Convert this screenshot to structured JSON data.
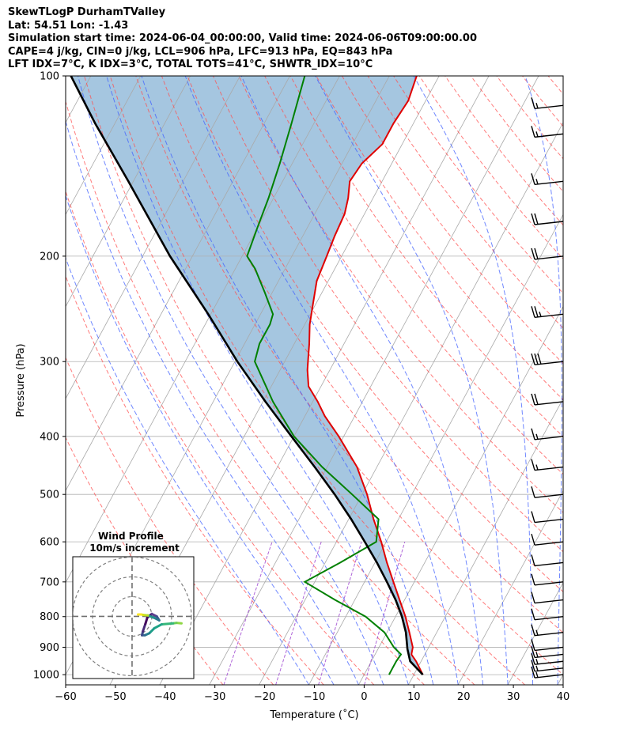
{
  "header": {
    "line1": "SkewTLogP DurhamTValley",
    "line2": "Lat: 54.51   Lon: -1.43",
    "line3": "Simulation start time: 2024-06-04_00:00:00, Valid time: 2024-06-06T09:00:00.00",
    "line4": "CAPE=4 j/kg, CIN=0 j/kg, LCL=906 hPa, LFC=913 hPa, EQ=843 hPa",
    "line5": "LFT IDX=7°C, K IDX=3°C, TOTAL TOTS=41°C, SHWTR_IDX=10°C"
  },
  "colors": {
    "temperature": "#e00000",
    "dewpoint": "#008000",
    "parcel": "#000000",
    "cape_fill": "#8fb8d8",
    "isotherm": "#a9a9a9",
    "dry_adiabat": "#ff5050",
    "moist_adiabat": "#4060ff",
    "mixing_ratio": "#9b40d0",
    "wind_barb": "#000000"
  },
  "chart_data": {
    "type": "line",
    "subtype": "skew-t log-p",
    "xlabel": "Temperature (˚C)",
    "ylabel": "Pressure (hPa)",
    "xlim": [
      -60,
      40
    ],
    "ylim": [
      1040,
      100
    ],
    "y_scale": "log",
    "x_ticks": [
      "−60",
      "−50",
      "−40",
      "−30",
      "−20",
      "−10",
      "0",
      "10",
      "20",
      "30",
      "40"
    ],
    "x_tick_values": [
      -60,
      -50,
      -40,
      -30,
      -20,
      -10,
      0,
      10,
      20,
      30,
      40
    ],
    "y_ticks": [
      "1000",
      "900",
      "800",
      "700",
      "600",
      "500",
      "400",
      "300",
      "200",
      "100"
    ],
    "y_tick_values": [
      1000,
      900,
      800,
      700,
      600,
      500,
      400,
      300,
      200,
      100
    ],
    "grid": true,
    "series": [
      {
        "key": "temperature",
        "pressure": [
          1000,
          950,
          925,
          900,
          850,
          800,
          750,
          700,
          650,
          600,
          550,
          500,
          450,
          400,
          370,
          350,
          330,
          310,
          300,
          280,
          260,
          240,
          220,
          200,
          185,
          170,
          160,
          150,
          140,
          130,
          120,
          110,
          100
        ],
        "values": [
          11.8,
          9.0,
          7.3,
          6.8,
          4.5,
          2.0,
          -1.0,
          -4.2,
          -7.6,
          -11.0,
          -15.0,
          -19.0,
          -24.0,
          -31.0,
          -36.0,
          -39.0,
          -42.5,
          -44.5,
          -45.3,
          -47.0,
          -49.0,
          -50.6,
          -52.3,
          -53.0,
          -53.6,
          -54.0,
          -55.0,
          -56.5,
          -56.0,
          -54.0,
          -54.0,
          -53.5,
          -54.5
        ]
      },
      {
        "key": "dewpoint",
        "pressure": [
          1000,
          975,
          950,
          925,
          900,
          850,
          800,
          750,
          700,
          650,
          600,
          550,
          500,
          450,
          400,
          350,
          300,
          280,
          260,
          250,
          230,
          210,
          200,
          180,
          160,
          140,
          120,
          100
        ],
        "values": [
          5.0,
          5.0,
          5.0,
          5.2,
          3.0,
          -0.5,
          -6.0,
          -14.0,
          -22.0,
          -17.0,
          -12.0,
          -14.0,
          -22.0,
          -31.0,
          -40.0,
          -48.0,
          -56.0,
          -57.0,
          -57.0,
          -57.5,
          -61.5,
          -66.0,
          -69.0,
          -70.0,
          -71.0,
          -72.5,
          -74.5,
          -77.0
        ]
      },
      {
        "key": "parcel",
        "pressure": [
          1000,
          950,
          906,
          850,
          800,
          750,
          700,
          650,
          600,
          550,
          500,
          450,
          400,
          350,
          300,
          250,
          200,
          150,
          120,
          100
        ],
        "values": [
          11.8,
          7.8,
          5.9,
          3.8,
          1.3,
          -1.8,
          -5.5,
          -9.6,
          -14.3,
          -19.5,
          -25.5,
          -32.5,
          -40.5,
          -49.5,
          -59.5,
          -70.5,
          -84.5,
          -101,
          -114,
          -124
        ]
      }
    ],
    "wind_barbs": {
      "pressure": [
        1000,
        975,
        950,
        925,
        900,
        850,
        800,
        750,
        700,
        650,
        600,
        550,
        500,
        450,
        400,
        350,
        300,
        250,
        200,
        175,
        150,
        125,
        112
      ],
      "speed_kt": [
        15,
        15,
        15,
        15,
        10,
        15,
        10,
        10,
        10,
        10,
        10,
        10,
        10,
        15,
        15,
        20,
        30,
        25,
        20,
        20,
        15,
        15,
        15
      ],
      "direction_deg": [
        260,
        260,
        260,
        255,
        250,
        255,
        265,
        275,
        285,
        300,
        305,
        300,
        295,
        290,
        285,
        280,
        280,
        275,
        270,
        270,
        270,
        265,
        265
      ]
    },
    "inset": {
      "title": "Wind Profile",
      "subtitle": "10m/s increment",
      "hodograph_u": [
        10.0,
        9.0,
        8.3,
        6.0,
        4.5,
        3.5,
        2.6,
        2.0,
        2.2,
        2.7,
        3.1,
        4.0,
        5.0,
        5.5,
        4.5,
        3.2,
        2.3,
        1.8,
        1.2
      ],
      "hodograph_v": [
        -1.4,
        -1.3,
        -1.4,
        -1.6,
        -2.4,
        -3.4,
        -3.8,
        -3.8,
        -3.0,
        -1.5,
        -0.2,
        0.5,
        0.0,
        -0.8,
        -0.3,
        0.2,
        0.3,
        0.4,
        0.4
      ]
    }
  }
}
